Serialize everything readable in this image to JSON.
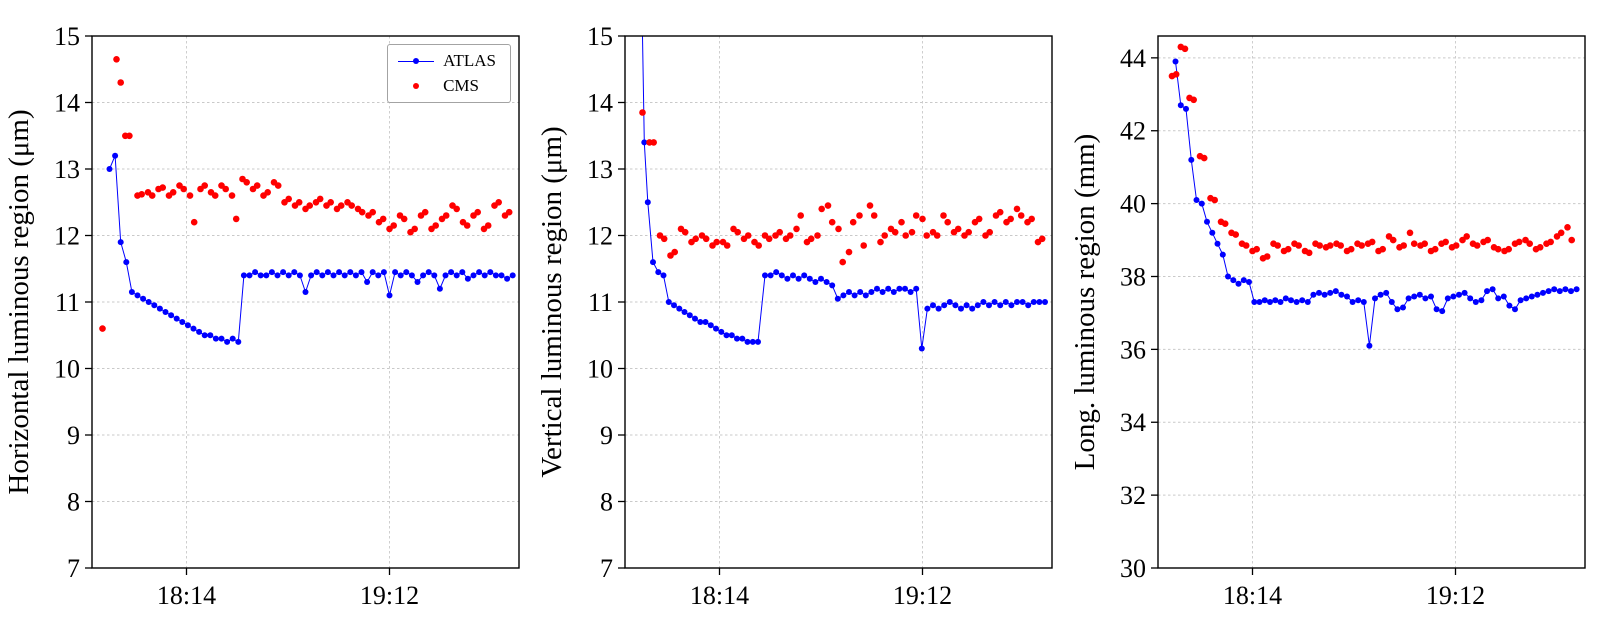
{
  "page": {
    "background": "#ffffff"
  },
  "legend": {
    "entries": [
      {
        "label": "ATLAS",
        "color": "#0000ff",
        "marker": "line-dot"
      },
      {
        "label": "CMS",
        "color": "#ff0000",
        "marker": "dot"
      }
    ]
  },
  "chart_data": [
    {
      "type": "scatter",
      "title": "",
      "xlabel": "",
      "ylabel": "Horizontal luminous region (μm)",
      "grid": true,
      "legend_position": "top-right",
      "xlim": [
        0,
        122
      ],
      "ylim": [
        7,
        15
      ],
      "yticks": [
        7,
        8,
        9,
        10,
        11,
        12,
        13,
        14,
        15
      ],
      "xticks": [
        {
          "value": 27,
          "label": "18:14"
        },
        {
          "value": 85,
          "label": "19:12"
        }
      ],
      "series": [
        {
          "name": "ATLAS",
          "color": "#0000ff",
          "line": true,
          "marker_radius": 3.0,
          "x": [
            5,
            6.6,
            8.2,
            9.8,
            11.4,
            13,
            14.6,
            16.2,
            17.8,
            19.4,
            21,
            22.6,
            24.2,
            25.8,
            27.4,
            29,
            30.6,
            32.2,
            33.8,
            35.4,
            37,
            38.6,
            40.2,
            41.8,
            43.4,
            45,
            46.6,
            48.2,
            49.8,
            51.4,
            53,
            54.6,
            56.2,
            57.8,
            59.4,
            61,
            62.6,
            64.2,
            65.8,
            67.4,
            69,
            70.6,
            72.2,
            73.8,
            75.4,
            77,
            78.6,
            80.2,
            81.8,
            83.4,
            85,
            86.6,
            88.2,
            89.8,
            91.4,
            93,
            94.6,
            96.2,
            97.8,
            99.4,
            101,
            102.6,
            104.2,
            105.8,
            107.4,
            109,
            110.6,
            112.2,
            113.8,
            115.4,
            117,
            118.6,
            120.2
          ],
          "y": [
            13.0,
            13.2,
            11.9,
            11.6,
            11.15,
            11.1,
            11.05,
            11.0,
            10.95,
            10.9,
            10.85,
            10.8,
            10.75,
            10.7,
            10.65,
            10.6,
            10.55,
            10.5,
            10.5,
            10.45,
            10.45,
            10.4,
            10.45,
            10.4,
            11.4,
            11.4,
            11.45,
            11.4,
            11.4,
            11.45,
            11.4,
            11.45,
            11.4,
            11.45,
            11.4,
            11.15,
            11.4,
            11.45,
            11.4,
            11.45,
            11.4,
            11.45,
            11.4,
            11.45,
            11.4,
            11.45,
            11.3,
            11.45,
            11.4,
            11.45,
            11.1,
            11.45,
            11.4,
            11.45,
            11.4,
            11.3,
            11.4,
            11.45,
            11.4,
            11.2,
            11.4,
            11.45,
            11.4,
            11.45,
            11.35,
            11.4,
            11.45,
            11.4,
            11.45,
            11.4,
            11.4,
            11.35,
            11.4
          ]
        },
        {
          "name": "CMS",
          "color": "#ff0000",
          "line": false,
          "marker_radius": 3.3,
          "x": [
            3,
            7,
            8.2,
            9.5,
            10.7,
            13,
            14.2,
            16,
            17.2,
            19,
            20.2,
            22,
            23.2,
            25,
            26.2,
            28,
            29.2,
            31,
            32.2,
            34,
            35.2,
            37,
            38.2,
            40,
            41.2,
            43,
            44.2,
            46,
            47.2,
            49,
            50.2,
            52,
            53.2,
            55,
            56.2,
            58,
            59.2,
            61,
            62.2,
            64,
            65.2,
            67,
            68.2,
            70,
            71.2,
            73,
            74.2,
            76,
            77.2,
            79,
            80.2,
            82,
            83.2,
            85,
            86.2,
            88,
            89.2,
            91,
            92.2,
            94,
            95.2,
            97,
            98.2,
            100,
            101.2,
            103,
            104.2,
            106,
            107.2,
            109,
            110.2,
            112,
            113.2,
            115,
            116.2,
            118,
            119.2
          ],
          "y": [
            10.6,
            14.65,
            14.3,
            13.5,
            13.5,
            12.6,
            12.62,
            12.65,
            12.6,
            12.7,
            12.72,
            12.6,
            12.65,
            12.75,
            12.7,
            12.6,
            12.2,
            12.7,
            12.75,
            12.65,
            12.6,
            12.75,
            12.7,
            12.6,
            12.25,
            12.85,
            12.8,
            12.7,
            12.75,
            12.6,
            12.65,
            12.8,
            12.75,
            12.5,
            12.55,
            12.45,
            12.5,
            12.4,
            12.45,
            12.5,
            12.55,
            12.45,
            12.5,
            12.4,
            12.45,
            12.5,
            12.45,
            12.4,
            12.35,
            12.3,
            12.35,
            12.2,
            12.25,
            12.1,
            12.15,
            12.3,
            12.25,
            12.05,
            12.1,
            12.3,
            12.35,
            12.1,
            12.15,
            12.25,
            12.3,
            12.45,
            12.4,
            12.2,
            12.15,
            12.3,
            12.35,
            12.1,
            12.15,
            12.45,
            12.5,
            12.3,
            12.35
          ]
        }
      ]
    },
    {
      "type": "scatter",
      "title": "",
      "xlabel": "",
      "ylabel": "Vertical luminous region (μm)",
      "grid": true,
      "xlim": [
        0,
        122
      ],
      "ylim": [
        7,
        15
      ],
      "yticks": [
        7,
        8,
        9,
        10,
        11,
        12,
        13,
        14,
        15
      ],
      "xticks": [
        {
          "value": 27,
          "label": "18:14"
        },
        {
          "value": 85,
          "label": "19:12"
        }
      ],
      "series": [
        {
          "name": "ATLAS",
          "color": "#0000ff",
          "line": true,
          "marker_radius": 3.0,
          "x": [
            4.5,
            5.5,
            6.5,
            8,
            9.5,
            11,
            12.5,
            14,
            15.5,
            17,
            18.5,
            20,
            21.5,
            23,
            24.5,
            26,
            27.5,
            29,
            30.5,
            32,
            33.5,
            35,
            36.5,
            38,
            40,
            41.6,
            43.2,
            44.8,
            46.4,
            48,
            49.6,
            51.2,
            52.8,
            54.4,
            56,
            57.6,
            59.2,
            60.8,
            62.4,
            64,
            65.6,
            67.2,
            68.8,
            70.4,
            72,
            73.6,
            75.2,
            76.8,
            78.4,
            80,
            81.6,
            83.2,
            84.8,
            86.4,
            88,
            89.6,
            91.2,
            92.8,
            94.4,
            96,
            97.6,
            99.2,
            100.8,
            102.4,
            104,
            105.6,
            107.2,
            108.8,
            110.4,
            112,
            113.6,
            115.2,
            116.8,
            118.4,
            120
          ],
          "y": [
            16.5,
            13.4,
            12.5,
            11.6,
            11.45,
            11.4,
            11.0,
            10.95,
            10.9,
            10.85,
            10.8,
            10.75,
            10.7,
            10.7,
            10.65,
            10.6,
            10.55,
            10.5,
            10.5,
            10.45,
            10.45,
            10.4,
            10.4,
            10.4,
            11.4,
            11.4,
            11.45,
            11.4,
            11.35,
            11.4,
            11.35,
            11.4,
            11.35,
            11.3,
            11.35,
            11.3,
            11.25,
            11.05,
            11.1,
            11.15,
            11.1,
            11.15,
            11.1,
            11.15,
            11.2,
            11.15,
            11.2,
            11.15,
            11.2,
            11.2,
            11.15,
            11.2,
            10.3,
            10.9,
            10.95,
            10.9,
            10.95,
            11.0,
            10.95,
            10.9,
            10.95,
            10.9,
            10.95,
            11.0,
            10.95,
            11.0,
            10.95,
            11.0,
            10.95,
            11.0,
            11.0,
            10.95,
            11.0,
            11.0,
            11.0
          ]
        },
        {
          "name": "CMS",
          "color": "#ff0000",
          "line": false,
          "marker_radius": 3.3,
          "x": [
            5,
            7,
            8.2,
            10,
            11.2,
            13,
            14.2,
            16,
            17.2,
            19,
            20.2,
            22,
            23.2,
            25,
            26.2,
            28,
            29.2,
            31,
            32.2,
            34,
            35.2,
            37,
            38.2,
            40,
            41.2,
            43,
            44.2,
            46,
            47.2,
            49,
            50.2,
            52,
            53.2,
            55,
            56.2,
            58,
            59.2,
            61,
            62.2,
            64,
            65.2,
            67,
            68.2,
            70,
            71.2,
            73,
            74.2,
            76,
            77.2,
            79,
            80.2,
            82,
            83.2,
            85,
            86.2,
            88,
            89.2,
            91,
            92.2,
            94,
            95.2,
            97,
            98.2,
            100,
            101.2,
            103,
            104.2,
            106,
            107.2,
            109,
            110.2,
            112,
            113.2,
            115,
            116.2,
            118,
            119.2
          ],
          "y": [
            13.85,
            13.4,
            13.4,
            12.0,
            11.95,
            11.7,
            11.75,
            12.1,
            12.05,
            11.9,
            11.95,
            12.0,
            11.95,
            11.85,
            11.9,
            11.9,
            11.85,
            12.1,
            12.05,
            11.95,
            12.0,
            11.9,
            11.85,
            12.0,
            11.95,
            12.0,
            12.05,
            11.95,
            12.0,
            12.1,
            12.3,
            11.9,
            11.95,
            12.0,
            12.4,
            12.45,
            12.2,
            12.1,
            11.6,
            11.75,
            12.2,
            12.3,
            11.85,
            12.45,
            12.3,
            11.9,
            12.0,
            12.1,
            12.05,
            12.2,
            12.0,
            12.05,
            12.3,
            12.25,
            12.0,
            12.05,
            12.0,
            12.3,
            12.2,
            12.05,
            12.1,
            12.0,
            12.05,
            12.2,
            12.25,
            12.0,
            12.05,
            12.3,
            12.35,
            12.2,
            12.25,
            12.4,
            12.3,
            12.2,
            12.25,
            11.9,
            11.95
          ]
        }
      ]
    },
    {
      "type": "scatter",
      "title": "",
      "xlabel": "",
      "ylabel": "Long. luminous region (mm)",
      "grid": true,
      "xlim": [
        0,
        122
      ],
      "ylim": [
        30,
        44.6
      ],
      "yticks": [
        30,
        32,
        34,
        36,
        38,
        40,
        42,
        44
      ],
      "xticks": [
        {
          "value": 27,
          "label": "18:14"
        },
        {
          "value": 85,
          "label": "19:12"
        }
      ],
      "series": [
        {
          "name": "ATLAS",
          "color": "#0000ff",
          "line": true,
          "marker_radius": 3.0,
          "x": [
            5,
            6.5,
            8,
            9.5,
            11,
            12.5,
            14,
            15.5,
            17,
            18.5,
            20,
            21.5,
            23,
            24.5,
            26,
            27.5,
            29,
            30.5,
            32,
            33.5,
            35,
            36.5,
            38,
            39.6,
            41.2,
            42.8,
            44.4,
            46,
            47.6,
            49.2,
            50.8,
            52.4,
            54,
            55.6,
            57.2,
            58.8,
            60.4,
            62,
            63.6,
            65.2,
            66.8,
            68.4,
            70,
            71.6,
            73.2,
            74.8,
            76.4,
            78,
            79.6,
            81.2,
            82.8,
            84.4,
            86,
            87.6,
            89.2,
            90.8,
            92.4,
            94,
            95.6,
            97.2,
            98.8,
            100.4,
            102,
            103.6,
            105.2,
            106.8,
            108.4,
            110,
            111.6,
            113.2,
            114.8,
            116.4,
            118,
            119.6
          ],
          "y": [
            43.9,
            42.7,
            42.6,
            41.2,
            40.1,
            40.0,
            39.5,
            39.2,
            38.9,
            38.6,
            38.0,
            37.9,
            37.8,
            37.9,
            37.85,
            37.3,
            37.3,
            37.35,
            37.3,
            37.35,
            37.3,
            37.4,
            37.35,
            37.3,
            37.35,
            37.3,
            37.5,
            37.55,
            37.5,
            37.55,
            37.6,
            37.5,
            37.45,
            37.3,
            37.35,
            37.3,
            36.1,
            37.4,
            37.5,
            37.55,
            37.3,
            37.1,
            37.15,
            37.4,
            37.45,
            37.5,
            37.4,
            37.45,
            37.1,
            37.05,
            37.4,
            37.45,
            37.5,
            37.55,
            37.4,
            37.3,
            37.35,
            37.6,
            37.65,
            37.4,
            37.45,
            37.2,
            37.1,
            37.35,
            37.4,
            37.45,
            37.5,
            37.55,
            37.6,
            37.65,
            37.6,
            37.65,
            37.6,
            37.65
          ]
        },
        {
          "name": "CMS",
          "color": "#ff0000",
          "line": false,
          "marker_radius": 3.3,
          "x": [
            4,
            5.2,
            6.5,
            7.7,
            9,
            10.2,
            12,
            13.2,
            15,
            16.2,
            18,
            19.2,
            21,
            22.2,
            24,
            25.2,
            27,
            28.2,
            30,
            31.2,
            33,
            34.2,
            36,
            37.2,
            39,
            40.2,
            42,
            43.2,
            45,
            46.2,
            48,
            49.2,
            51,
            52.2,
            54,
            55.2,
            57,
            58.2,
            60,
            61.2,
            63,
            64.2,
            66,
            67.2,
            69,
            70.2,
            72,
            73.2,
            75,
            76.2,
            78,
            79.2,
            81,
            82.2,
            84,
            85.2,
            87,
            88.2,
            90,
            91.2,
            93,
            94.2,
            96,
            97.2,
            99,
            100.2,
            102,
            103.2,
            105,
            106.2,
            108,
            109.2,
            111,
            112.2,
            114,
            115.2,
            117,
            118.2
          ],
          "y": [
            43.5,
            43.55,
            44.3,
            44.25,
            42.9,
            42.85,
            41.3,
            41.25,
            40.15,
            40.1,
            39.5,
            39.45,
            39.2,
            39.15,
            38.9,
            38.85,
            38.7,
            38.75,
            38.5,
            38.55,
            38.9,
            38.85,
            38.7,
            38.75,
            38.9,
            38.85,
            38.7,
            38.65,
            38.9,
            38.85,
            38.8,
            38.85,
            38.9,
            38.85,
            38.7,
            38.75,
            38.9,
            38.85,
            38.9,
            38.95,
            38.7,
            38.75,
            39.1,
            39.0,
            38.8,
            38.85,
            39.2,
            38.9,
            38.85,
            38.9,
            38.7,
            38.75,
            38.9,
            38.95,
            38.8,
            38.85,
            39.0,
            39.1,
            38.9,
            38.85,
            38.95,
            39.0,
            38.8,
            38.75,
            38.7,
            38.75,
            38.9,
            38.95,
            39.0,
            38.9,
            38.75,
            38.8,
            38.9,
            38.95,
            39.1,
            39.2,
            39.35,
            39.0
          ]
        }
      ]
    }
  ]
}
